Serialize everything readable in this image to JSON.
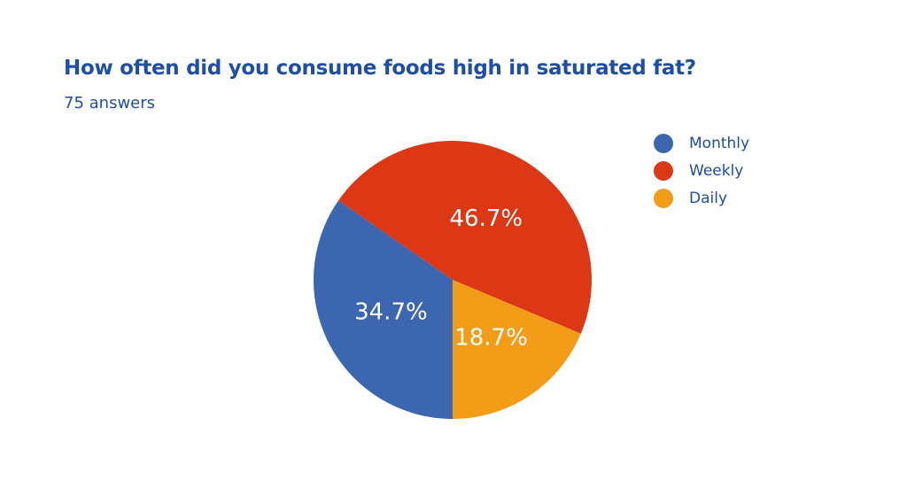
{
  "chart_data": {
    "type": "pie",
    "title": "How often did you consume foods high in saturated fat?",
    "subtitle": "75 answers",
    "start_angle_deg": 90,
    "direction": "clockwise",
    "legend_position": "top-right",
    "slices": [
      {
        "name": "Monthly",
        "value": 34.7,
        "label": "34.7%",
        "color": "#3d66b0"
      },
      {
        "name": "Weekly",
        "value": 46.7,
        "label": "46.7%",
        "color": "#dc3816"
      },
      {
        "name": "Daily",
        "value": 18.7,
        "label": "18.7%",
        "color": "#f29c18"
      }
    ]
  }
}
